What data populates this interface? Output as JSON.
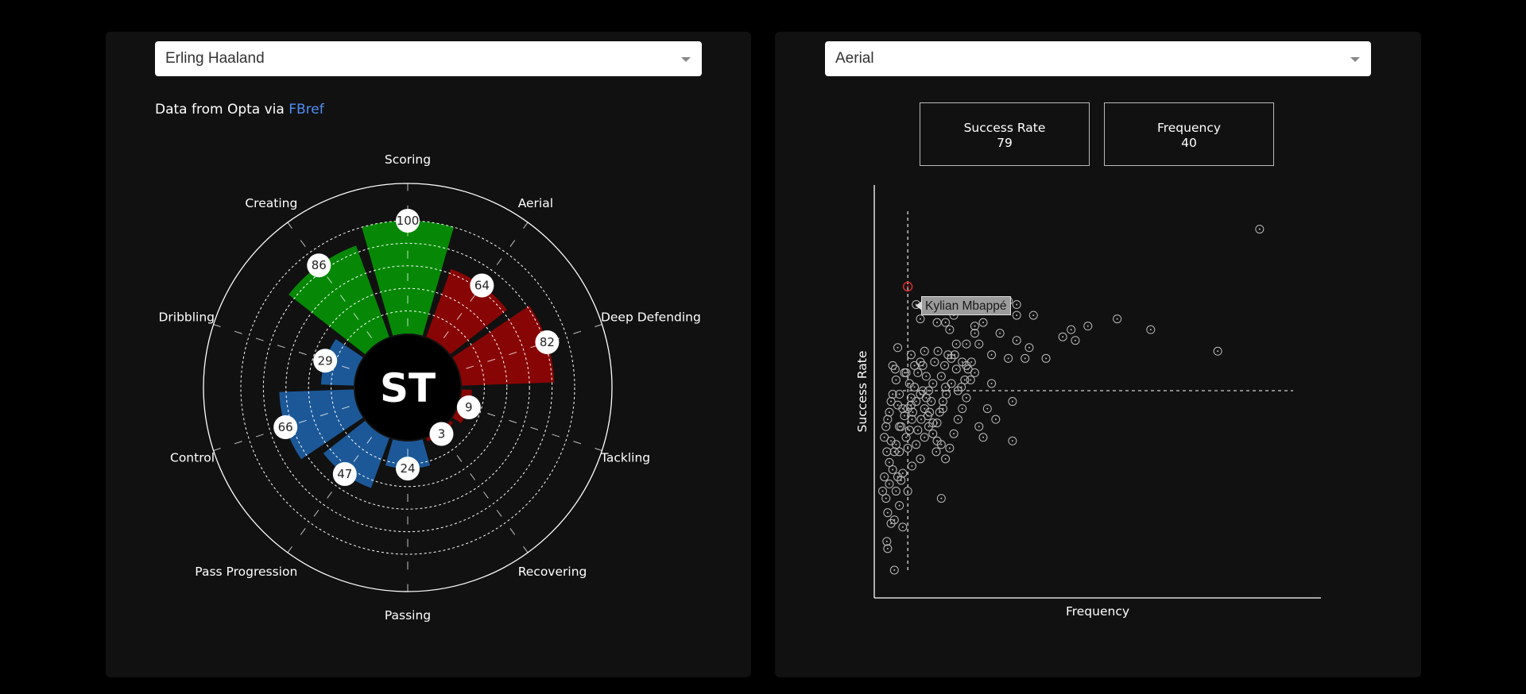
{
  "player_select": {
    "value": "Erling Haaland"
  },
  "category_select": {
    "value": "Aerial"
  },
  "source": {
    "prefix": "Data from Opta via ",
    "link": "FBref"
  },
  "stats": {
    "success_label": "Success Rate",
    "success_value": "79",
    "frequency_label": "Frequency",
    "frequency_value": "40"
  },
  "tooltip": {
    "label": "Kylian Mbappé"
  },
  "colors": {
    "attack": "#068806",
    "defend": "#880505",
    "possession": "#1c5897",
    "highlight": "#d12a2a",
    "link": "#4f8df5"
  },
  "chart_data": [
    {
      "type": "polar-bar",
      "center_label": "ST",
      "categories": [
        "Scoring",
        "Aerial",
        "Deep Defending",
        "Tackling",
        "Recovering",
        "Passing",
        "Pass Progression",
        "Control",
        "Dribbling",
        "Creating"
      ],
      "values": [
        100,
        64,
        82,
        9,
        3,
        24,
        47,
        66,
        29,
        86
      ],
      "groups": [
        "attack",
        "defend",
        "defend",
        "defend",
        "defend",
        "possession",
        "possession",
        "possession",
        "possession",
        "attack"
      ],
      "rlim": [
        0,
        100
      ]
    },
    {
      "type": "scatter",
      "xlabel": "Frequency",
      "ylabel": "Success Rate",
      "highlight": {
        "x": 40,
        "y": 79
      },
      "reference_lines": {
        "x": 40,
        "y": 50
      },
      "xlim": [
        0,
        500
      ],
      "ylim": [
        0,
        100
      ],
      "points": [
        [
          460,
          95
        ],
        [
          410,
          61
        ],
        [
          330,
          67
        ],
        [
          290,
          70
        ],
        [
          255,
          68
        ],
        [
          240,
          64
        ],
        [
          235,
          67
        ],
        [
          225,
          65
        ],
        [
          205,
          59
        ],
        [
          185,
          62
        ],
        [
          180,
          59
        ],
        [
          190,
          71
        ],
        [
          170,
          71
        ],
        [
          170,
          74
        ],
        [
          50,
          74
        ],
        [
          55,
          70
        ],
        [
          90,
          67
        ],
        [
          95,
          71
        ],
        [
          75,
          69
        ],
        [
          85,
          69
        ],
        [
          98,
          63
        ],
        [
          120,
          66
        ],
        [
          110,
          57
        ],
        [
          125,
          63
        ],
        [
          140,
          60
        ],
        [
          145,
          75
        ],
        [
          160,
          75
        ],
        [
          170,
          64
        ],
        [
          130,
          69
        ],
        [
          120,
          68
        ],
        [
          110,
          63
        ],
        [
          105,
          58
        ],
        [
          98,
          56
        ],
        [
          92,
          52
        ],
        [
          85,
          51
        ],
        [
          82,
          47
        ],
        [
          78,
          44
        ],
        [
          75,
          41
        ],
        [
          60,
          61
        ],
        [
          55,
          58
        ],
        [
          52,
          55
        ],
        [
          48,
          51
        ],
        [
          44,
          48
        ],
        [
          40,
          45
        ],
        [
          36,
          43
        ],
        [
          32,
          40
        ],
        [
          28,
          62
        ],
        [
          25,
          56
        ],
        [
          22,
          49
        ],
        [
          20,
          47
        ],
        [
          18,
          44
        ],
        [
          16,
          42
        ],
        [
          14,
          40
        ],
        [
          12,
          37
        ],
        [
          15,
          33
        ],
        [
          18,
          30
        ],
        [
          22,
          28
        ],
        [
          26,
          35
        ],
        [
          30,
          33
        ],
        [
          34,
          27
        ],
        [
          10,
          22
        ],
        [
          12,
          26
        ],
        [
          14,
          20
        ],
        [
          16,
          16
        ],
        [
          20,
          13
        ],
        [
          24,
          14
        ],
        [
          30,
          18
        ],
        [
          34,
          12
        ],
        [
          40,
          22
        ],
        [
          45,
          29
        ],
        [
          50,
          35
        ],
        [
          55,
          31
        ],
        [
          60,
          37
        ],
        [
          65,
          40
        ],
        [
          70,
          41
        ],
        [
          75,
          36
        ],
        [
          80,
          35
        ],
        [
          85,
          31
        ],
        [
          90,
          34
        ],
        [
          95,
          38
        ],
        [
          100,
          42
        ],
        [
          105,
          45
        ],
        [
          110,
          48
        ],
        [
          115,
          53
        ],
        [
          120,
          55
        ],
        [
          70,
          52
        ],
        [
          65,
          50
        ],
        [
          62,
          54
        ],
        [
          58,
          57
        ],
        [
          55,
          49
        ],
        [
          50,
          47
        ],
        [
          45,
          42
        ],
        [
          42,
          39
        ],
        [
          38,
          37
        ],
        [
          34,
          45
        ],
        [
          30,
          49
        ],
        [
          26,
          53
        ],
        [
          22,
          57
        ],
        [
          60,
          45
        ],
        [
          64,
          43
        ],
        [
          68,
          47
        ],
        [
          72,
          58
        ],
        [
          76,
          61
        ],
        [
          80,
          54
        ],
        [
          84,
          57
        ],
        [
          88,
          60
        ],
        [
          92,
          59
        ],
        [
          96,
          60
        ],
        [
          100,
          50
        ],
        [
          104,
          51
        ],
        [
          108,
          53
        ],
        [
          112,
          56
        ],
        [
          116,
          58
        ],
        [
          150,
          66
        ],
        [
          160,
          59
        ],
        [
          165,
          47
        ],
        [
          165,
          36
        ],
        [
          130,
          37
        ],
        [
          145,
          42
        ],
        [
          135,
          45
        ],
        [
          140,
          52
        ],
        [
          125,
          40
        ],
        [
          80,
          20
        ],
        [
          40,
          34
        ],
        [
          46,
          44
        ],
        [
          52,
          39
        ],
        [
          56,
          42
        ],
        [
          48,
          57
        ],
        [
          44,
          60
        ],
        [
          38,
          55
        ],
        [
          42,
          52
        ],
        [
          28,
          46
        ],
        [
          20,
          36
        ],
        [
          24,
          33
        ],
        [
          32,
          25
        ],
        [
          26,
          22
        ],
        [
          18,
          24
        ],
        [
          15,
          8
        ],
        [
          16,
          6
        ],
        [
          24,
          0
        ],
        [
          28,
          26
        ],
        [
          30,
          40
        ],
        [
          36,
          55
        ],
        [
          44,
          46
        ],
        [
          58,
          50
        ],
        [
          62,
          48
        ],
        [
          66,
          44
        ],
        [
          70,
          38
        ],
        [
          74,
          33
        ],
        [
          82,
          45
        ],
        [
          86,
          49
        ]
      ]
    }
  ]
}
